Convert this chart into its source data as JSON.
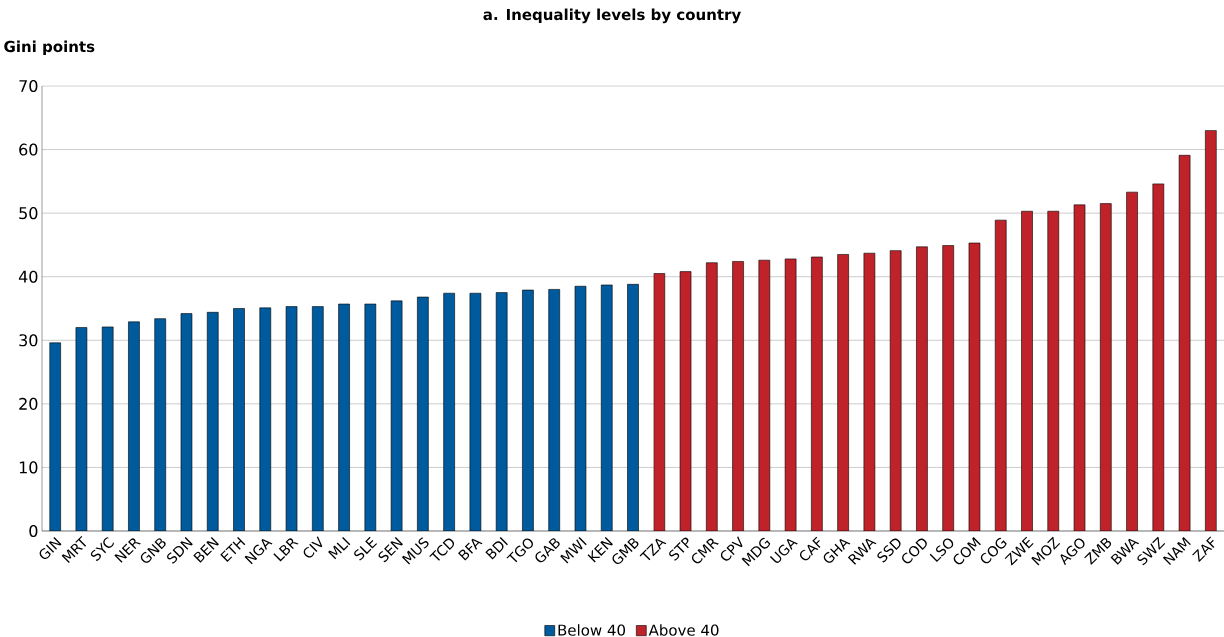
{
  "chart_data": {
    "type": "bar",
    "title": "a. Inequality levels by country",
    "ylabel": "Gini points",
    "categories": [
      "GIN",
      "MRT",
      "SYC",
      "NER",
      "GNB",
      "SDN",
      "BEN",
      "ETH",
      "NGA",
      "LBR",
      "CIV",
      "MLI",
      "SLE",
      "SEN",
      "MUS",
      "TCD",
      "BFA",
      "BDI",
      "TGO",
      "GAB",
      "MWI",
      "KEN",
      "GMB",
      "TZA",
      "STP",
      "CMR",
      "CPV",
      "MDG",
      "UGA",
      "CAF",
      "GHA",
      "RWA",
      "SSD",
      "COD",
      "LSO",
      "COM",
      "COG",
      "ZWE",
      "MOZ",
      "AGO",
      "ZMB",
      "BWA",
      "SWZ",
      "NAM",
      "ZAF"
    ],
    "series": [
      {
        "name": "Below 40",
        "color": "#005a9e",
        "values": [
          29.6,
          32.0,
          32.1,
          32.9,
          33.4,
          34.2,
          34.4,
          35.0,
          35.1,
          35.3,
          35.3,
          35.7,
          35.7,
          36.2,
          36.8,
          37.4,
          37.4,
          37.5,
          37.9,
          38.0,
          38.5,
          38.7,
          38.8,
          null,
          null,
          null,
          null,
          null,
          null,
          null,
          null,
          null,
          null,
          null,
          null,
          null,
          null,
          null,
          null,
          null,
          null,
          null,
          null,
          null,
          null
        ]
      },
      {
        "name": "Above 40",
        "color": "#c0222a",
        "values": [
          null,
          null,
          null,
          null,
          null,
          null,
          null,
          null,
          null,
          null,
          null,
          null,
          null,
          null,
          null,
          null,
          null,
          null,
          null,
          null,
          null,
          null,
          null,
          40.5,
          40.8,
          42.2,
          42.4,
          42.6,
          42.8,
          43.1,
          43.5,
          43.7,
          44.1,
          44.7,
          44.9,
          45.3,
          48.9,
          50.3,
          50.3,
          51.3,
          51.5,
          53.3,
          54.6,
          59.1,
          63.0
        ]
      }
    ],
    "ylim": [
      0,
      70
    ],
    "yticks": [
      0,
      10,
      20,
      30,
      40,
      50,
      60,
      70
    ],
    "grid": "y",
    "legend": "bottom"
  }
}
